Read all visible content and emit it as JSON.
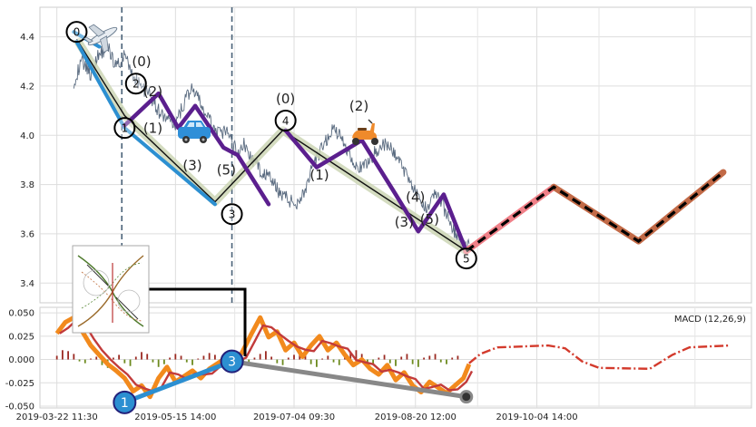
{
  "chart_data": [
    {
      "type": "line",
      "panel": "price",
      "grid": true,
      "ylim": [
        3.32,
        4.52
      ],
      "y_ticks": [
        "4.4",
        "4.2",
        "4.0",
        "3.8",
        "3.6",
        "3.4"
      ],
      "y_tick_values": [
        4.4,
        4.2,
        4.0,
        3.8,
        3.6,
        3.4
      ],
      "price_noise": [
        [
          0,
          4.22
        ],
        [
          3,
          4.3
        ],
        [
          6,
          4.25
        ],
        [
          9,
          4.33
        ],
        [
          12,
          4.36
        ],
        [
          15,
          4.28
        ],
        [
          18,
          4.32
        ],
        [
          21,
          4.24
        ],
        [
          24,
          4.2
        ],
        [
          27,
          4.16
        ],
        [
          30,
          4.1
        ],
        [
          33,
          4.06
        ],
        [
          36,
          4.04
        ],
        [
          38,
          4.1
        ],
        [
          40,
          4.16
        ],
        [
          42,
          4.19
        ],
        [
          44,
          4.15
        ],
        [
          46,
          4.1
        ],
        [
          48,
          4.06
        ],
        [
          50,
          4.02
        ],
        [
          52,
          4.0
        ],
        [
          54,
          4.02
        ],
        [
          56,
          3.97
        ],
        [
          58,
          3.93
        ],
        [
          60,
          3.97
        ],
        [
          62,
          3.92
        ],
        [
          64,
          3.89
        ],
        [
          66,
          3.86
        ],
        [
          68,
          3.84
        ],
        [
          70,
          3.82
        ],
        [
          72,
          3.78
        ],
        [
          74,
          3.76
        ],
        [
          76,
          3.74
        ],
        [
          78,
          3.72
        ],
        [
          80,
          3.74
        ],
        [
          82,
          3.78
        ],
        [
          84,
          3.85
        ],
        [
          86,
          3.9
        ],
        [
          88,
          3.95
        ],
        [
          90,
          3.99
        ],
        [
          92,
          4.03
        ],
        [
          94,
          4.0
        ],
        [
          96,
          3.96
        ],
        [
          98,
          3.92
        ],
        [
          100,
          3.88
        ],
        [
          102,
          3.86
        ],
        [
          104,
          3.89
        ],
        [
          106,
          3.92
        ],
        [
          108,
          3.95
        ],
        [
          110,
          3.96
        ],
        [
          112,
          3.95
        ],
        [
          114,
          3.92
        ],
        [
          116,
          3.88
        ],
        [
          118,
          3.84
        ],
        [
          120,
          3.8
        ],
        [
          122,
          3.74
        ],
        [
          124,
          3.7
        ],
        [
          126,
          3.73
        ],
        [
          128,
          3.77
        ],
        [
          130,
          3.73
        ],
        [
          132,
          3.68
        ],
        [
          134,
          3.63
        ],
        [
          136,
          3.58
        ],
        [
          138,
          3.55
        ],
        [
          139,
          3.54
        ],
        [
          140,
          3.56
        ]
      ],
      "zigzag_main": [
        [
          1,
          4.39
        ],
        [
          18,
          4.08
        ],
        [
          50,
          3.73
        ],
        [
          74,
          4.02
        ],
        [
          139,
          3.53
        ]
      ],
      "zigzag_minor": [
        [
          18,
          4.04
        ],
        [
          30,
          4.17
        ],
        [
          37,
          4.03
        ],
        [
          43,
          4.12
        ],
        [
          53,
          3.95
        ],
        [
          58,
          3.92
        ],
        [
          69,
          3.72
        ]
      ],
      "zigzag_minor2": [
        [
          75,
          4.02
        ],
        [
          86,
          3.87
        ],
        [
          102,
          3.98
        ],
        [
          114,
          3.76
        ],
        [
          122,
          3.61
        ],
        [
          131,
          3.76
        ],
        [
          139,
          3.53
        ]
      ],
      "forecast": [
        [
          139,
          3.53
        ],
        [
          170,
          3.79
        ],
        [
          200,
          3.57
        ],
        [
          230,
          3.85
        ]
      ],
      "wave_circles": [
        {
          "label": "0",
          "x": 1,
          "y": 4.42
        },
        {
          "label": "1",
          "x": 18,
          "y": 4.03
        },
        {
          "label": "2",
          "x": 22,
          "y": 4.21
        },
        {
          "label": "3",
          "x": 56,
          "y": 3.68
        },
        {
          "label": "4",
          "x": 75,
          "y": 4.06
        },
        {
          "label": "5",
          "x": 139,
          "y": 3.5
        }
      ],
      "wave_labels": [
        {
          "label": "(0)",
          "x": 24,
          "y": 4.28
        },
        {
          "label": "(2)",
          "x": 28,
          "y": 4.16
        },
        {
          "label": "(1)",
          "x": 28,
          "y": 4.01
        },
        {
          "label": "(3)",
          "x": 42,
          "y": 3.86
        },
        {
          "label": "(5)",
          "x": 54,
          "y": 3.84
        },
        {
          "label": "(0)",
          "x": 75,
          "y": 4.13
        },
        {
          "label": "(1)",
          "x": 87,
          "y": 3.82
        },
        {
          "label": "(2)",
          "x": 101,
          "y": 4.1
        },
        {
          "label": "(3)",
          "x": 117,
          "y": 3.63
        },
        {
          "label": "(4)",
          "x": 121,
          "y": 3.73
        },
        {
          "label": "(5)",
          "x": 126,
          "y": 3.64
        }
      ],
      "vlines_x": [
        17,
        56
      ],
      "icons": [
        "airplane-icon",
        "car-icon",
        "scooter-icon"
      ]
    },
    {
      "type": "line",
      "panel": "macd",
      "title": "MACD (12,26,9)",
      "grid": true,
      "ylim": [
        -0.052,
        0.056
      ],
      "y_ticks": [
        "0.050",
        "0.025",
        "0.000",
        "-0.025",
        "-0.050"
      ],
      "y_tick_values": [
        0.05,
        0.025,
        0.0,
        -0.025,
        -0.05
      ],
      "x_tick_labels": [
        "2019-03-22 11:30",
        "2019-05-15 14:00",
        "2019-07-04 09:30",
        "2019-08-20 12:00",
        "2019-10-04 14:00"
      ],
      "x_tick_values": [
        -6,
        36,
        78,
        121,
        164
      ],
      "macd_line": [
        [
          -6,
          0.028
        ],
        [
          -3,
          0.04
        ],
        [
          0,
          0.045
        ],
        [
          3,
          0.03
        ],
        [
          6,
          0.015
        ],
        [
          9,
          0.005
        ],
        [
          12,
          -0.005
        ],
        [
          15,
          -0.012
        ],
        [
          18,
          -0.02
        ],
        [
          21,
          -0.034
        ],
        [
          24,
          -0.028
        ],
        [
          27,
          -0.04
        ],
        [
          30,
          -0.02
        ],
        [
          33,
          -0.008
        ],
        [
          36,
          -0.024
        ],
        [
          39,
          -0.018
        ],
        [
          42,
          -0.012
        ],
        [
          45,
          -0.02
        ],
        [
          48,
          -0.01
        ],
        [
          51,
          -0.004
        ],
        [
          54,
          0.002
        ],
        [
          57,
          -0.006
        ],
        [
          60,
          0.01
        ],
        [
          63,
          0.028
        ],
        [
          66,
          0.045
        ],
        [
          69,
          0.024
        ],
        [
          72,
          0.03
        ],
        [
          75,
          0.01
        ],
        [
          78,
          0.018
        ],
        [
          81,
          0.003
        ],
        [
          84,
          0.015
        ],
        [
          87,
          0.025
        ],
        [
          90,
          0.01
        ],
        [
          93,
          0.018
        ],
        [
          96,
          0.005
        ],
        [
          99,
          -0.006
        ],
        [
          102,
          0.0
        ],
        [
          105,
          -0.01
        ],
        [
          108,
          -0.016
        ],
        [
          111,
          -0.006
        ],
        [
          114,
          -0.022
        ],
        [
          117,
          -0.014
        ],
        [
          120,
          -0.028
        ],
        [
          123,
          -0.035
        ],
        [
          126,
          -0.024
        ],
        [
          129,
          -0.03
        ],
        [
          132,
          -0.036
        ],
        [
          135,
          -0.028
        ],
        [
          138,
          -0.02
        ],
        [
          140,
          -0.005
        ]
      ],
      "signal_forecast": [
        [
          140,
          -0.004
        ],
        [
          144,
          0.006
        ],
        [
          150,
          0.013
        ],
        [
          168,
          0.015
        ],
        [
          174,
          0.012
        ],
        [
          180,
          -0.002
        ],
        [
          186,
          -0.009
        ],
        [
          204,
          -0.01
        ],
        [
          212,
          0.005
        ],
        [
          218,
          0.013
        ],
        [
          232,
          0.015
        ]
      ],
      "histogram_x_start": -6,
      "histogram": [
        0.004,
        0.01,
        0.009,
        0.006,
        -0.002,
        -0.004,
        0.001,
        0.003,
        -0.006,
        -0.009,
        0.002,
        0.005,
        -0.004,
        -0.007,
        0.003,
        0.008,
        0.006,
        -0.003,
        -0.008,
        -0.005,
        0.002,
        0.006,
        0.004,
        -0.003,
        -0.006,
        0.001,
        0.004,
        0.007,
        0.005,
        -0.002,
        -0.005,
        0.003,
        0.006,
        -0.004,
        -0.007,
        0.002,
        0.006,
        0.009,
        0.003,
        -0.004,
        -0.006,
        0.002,
        0.005,
        0.008,
        0.004,
        -0.005,
        -0.008,
        0.001,
        0.004,
        -0.003,
        -0.006,
        0.003,
        0.007,
        0.01,
        0.006,
        -0.003,
        -0.006,
        0.002,
        0.005,
        -0.004,
        -0.007,
        0.003,
        0.006,
        -0.005,
        -0.008,
        0.002,
        0.004,
        0.006,
        -0.003,
        -0.005,
        0.002,
        0.004
      ],
      "wave_circles": [
        {
          "label": "1",
          "x": 18,
          "y": -0.046
        },
        {
          "label": "3",
          "x": 56,
          "y": -0.002
        }
      ],
      "trend_lines": [
        [
          [
            18,
            -0.046
          ],
          [
            56,
            -0.002
          ]
        ],
        [
          [
            56,
            -0.002
          ],
          [
            139,
            -0.04
          ]
        ]
      ]
    }
  ]
}
